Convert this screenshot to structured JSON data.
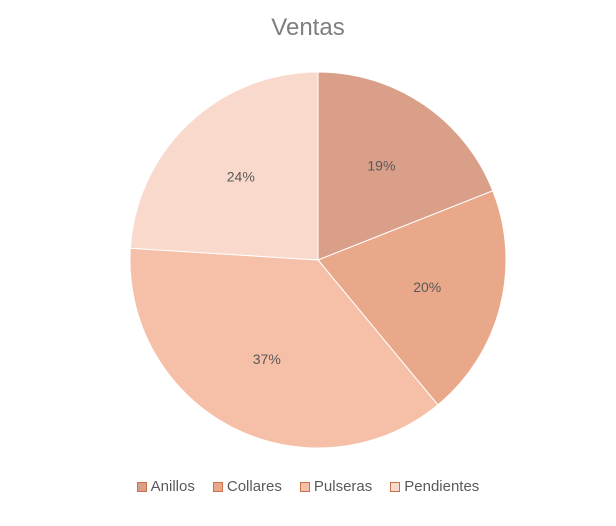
{
  "chart_data": {
    "type": "pie",
    "title": "Ventas",
    "categories": [
      "Anillos",
      "Collares",
      "Pulseras",
      "Pendientes"
    ],
    "values": [
      19,
      20,
      37,
      24
    ],
    "data_labels": [
      "19%",
      "20%",
      "37%",
      "24%"
    ],
    "colors": [
      "#d99f88",
      "#eaa88a",
      "#f6bfa7",
      "#fad9cd"
    ],
    "legend_position": "bottom"
  }
}
